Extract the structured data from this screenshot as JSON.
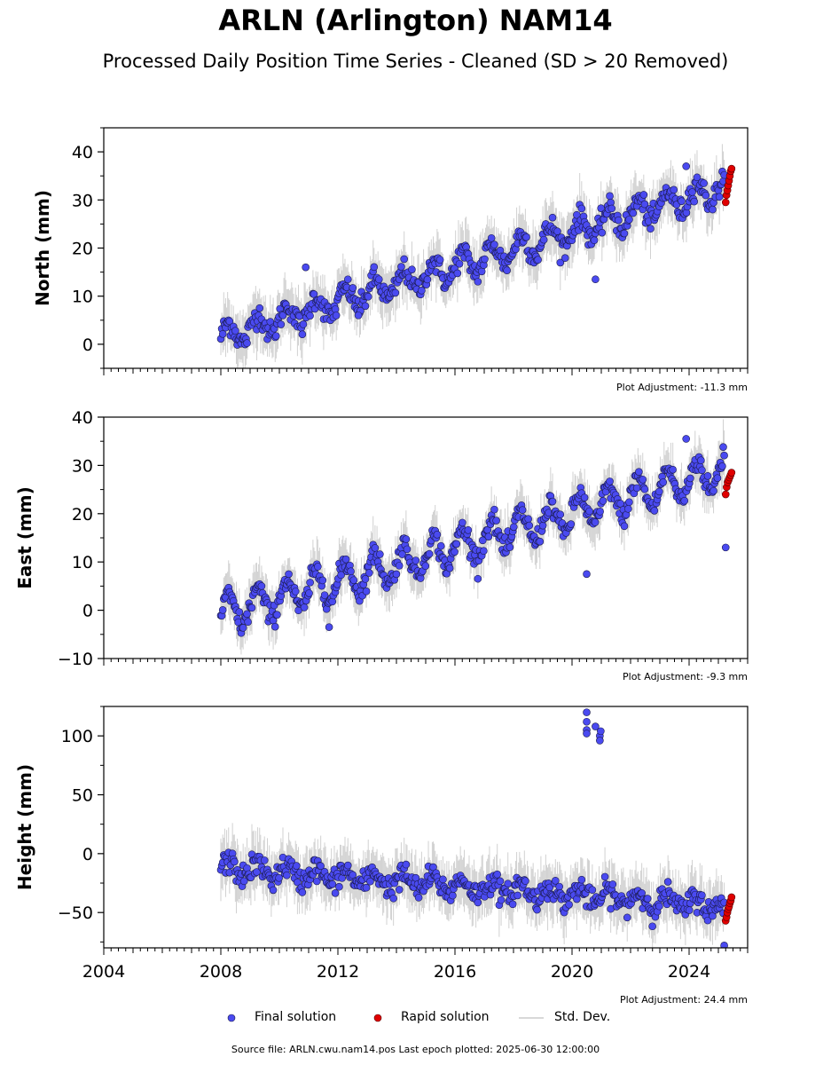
{
  "title": "ARLN (Arlington) NAM14",
  "subtitle": "Processed Daily Position Time Series - Cleaned (SD > 20 Removed)",
  "legend": {
    "final": "Final solution",
    "rapid": "Rapid solution",
    "std": "Std. Dev."
  },
  "source": "Source file: ARLN.cwu.nam14.pos  Last epoch plotted: 2025-06-30 12:00:00",
  "colors": {
    "final": "#4a4af0",
    "rapid": "#e00000",
    "std": "#999999"
  },
  "chart_data": [
    {
      "type": "scatter",
      "ylabel": "North (mm)",
      "xlim": [
        2004,
        2026
      ],
      "ylim": [
        -5,
        45
      ],
      "yticks": [
        0,
        10,
        20,
        30,
        40
      ],
      "adjustment": "Plot Adjustment: -11.3 mm",
      "trend": {
        "start_year": 2008.0,
        "start_value": 1.5,
        "slope_per_year": 1.82
      },
      "seasonal_amplitude": 2.5,
      "noise": 1.2,
      "final_solution_range": [
        2008.0,
        2025.2
      ],
      "rapid_solution": {
        "x_range": [
          2025.25,
          2025.45
        ],
        "values": [
          29.5,
          31,
          32,
          33,
          34,
          35,
          36,
          36.5
        ]
      },
      "outliers": [
        [
          2010.9,
          16
        ],
        [
          2012.7,
          6
        ],
        [
          2020.8,
          13.5
        ],
        [
          2023.9,
          37
        ]
      ]
    },
    {
      "type": "scatter",
      "ylabel": "East (mm)",
      "xlim": [
        2004,
        2026
      ],
      "ylim": [
        -10,
        40
      ],
      "yticks": [
        -10,
        0,
        10,
        20,
        30,
        40
      ],
      "adjustment": "Plot Adjustment: -9.3 mm",
      "trend": {
        "start_year": 2008.0,
        "start_value": -1.0,
        "slope_per_year": 1.75
      },
      "seasonal_amplitude": 3.5,
      "noise": 1.1,
      "final_solution_range": [
        2008.0,
        2025.2
      ],
      "rapid_solution": {
        "x_range": [
          2025.25,
          2025.45
        ],
        "values": [
          24,
          25.5,
          26.5,
          27,
          27.5,
          28,
          28.5
        ]
      },
      "outliers": [
        [
          2011.7,
          -3.5
        ],
        [
          2020.5,
          7.5
        ],
        [
          2023.9,
          35.5
        ],
        [
          2025.25,
          13
        ]
      ]
    },
    {
      "type": "scatter",
      "ylabel": "Height (mm)",
      "xlim": [
        2004,
        2026
      ],
      "ylim": [
        -80,
        125
      ],
      "yticks": [
        -50,
        0,
        50,
        100
      ],
      "xticks": [
        2004,
        2008,
        2012,
        2016,
        2020,
        2024
      ],
      "adjustment": "Plot Adjustment: 24.4 mm",
      "trend": {
        "start_year": 2008.0,
        "start_value": -12.0,
        "slope_per_year": -1.9
      },
      "seasonal_amplitude": 6,
      "noise": 5,
      "final_solution_range": [
        2008.0,
        2025.2
      ],
      "rapid_solution": {
        "x_range": [
          2025.25,
          2025.45
        ],
        "values": [
          -57,
          -54,
          -50,
          -47,
          -45,
          -42,
          -40,
          -37
        ]
      },
      "outliers": [
        [
          2020.5,
          120
        ],
        [
          2020.5,
          112
        ],
        [
          2020.5,
          105
        ],
        [
          2020.5,
          102
        ],
        [
          2020.8,
          108
        ],
        [
          2020.95,
          100
        ],
        [
          2020.95,
          96
        ],
        [
          2020.98,
          104
        ],
        [
          2025.2,
          -78
        ]
      ]
    }
  ]
}
